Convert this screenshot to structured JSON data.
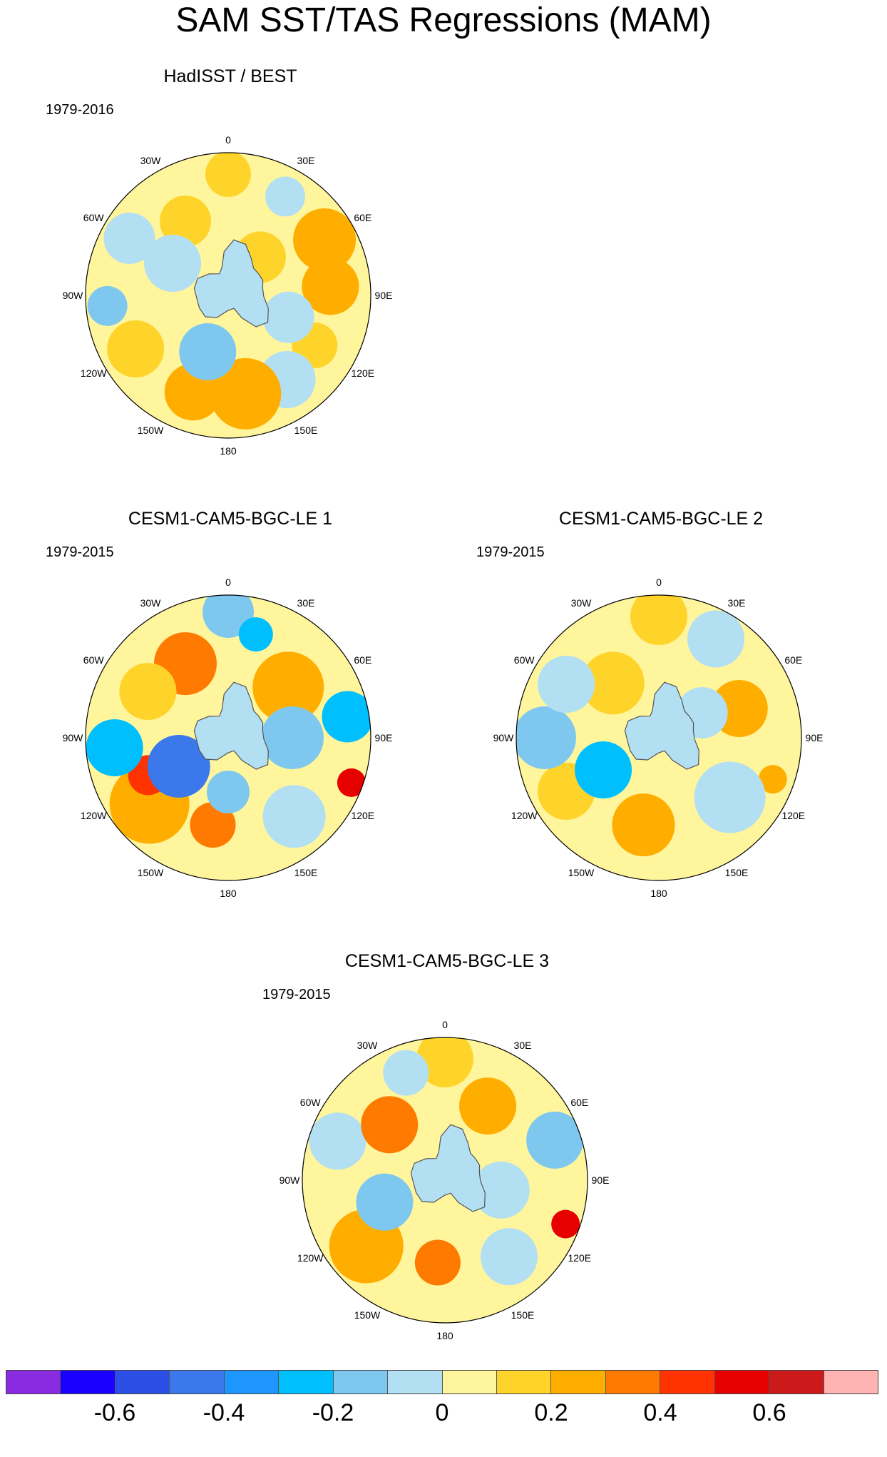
{
  "title": "SAM SST/TAS Regressions (MAM)",
  "longitude_labels": [
    "0",
    "30E",
    "60E",
    "90E",
    "120E",
    "150E",
    "180",
    "150W",
    "120W",
    "90W",
    "60W",
    "30W"
  ],
  "panels": [
    {
      "title": "HadISST / BEST",
      "period": "1979-2016",
      "blobs": [
        {
          "lon": 0,
          "r": 0.85,
          "rad": 0.16,
          "v": 0.1
        },
        {
          "lon": 30,
          "r": 0.8,
          "rad": 0.14,
          "v": -0.1
        },
        {
          "lon": 60,
          "r": 0.78,
          "rad": 0.22,
          "v": 0.2
        },
        {
          "lon": 85,
          "r": 0.72,
          "rad": 0.2,
          "v": 0.25
        },
        {
          "lon": 120,
          "r": 0.7,
          "rad": 0.16,
          "v": 0.1
        },
        {
          "lon": 145,
          "r": 0.72,
          "rad": 0.2,
          "v": -0.1
        },
        {
          "lon": 170,
          "r": 0.7,
          "rad": 0.25,
          "v": 0.2
        },
        {
          "lon": 200,
          "r": 0.72,
          "rad": 0.2,
          "v": 0.25
        },
        {
          "lon": 240,
          "r": 0.75,
          "rad": 0.2,
          "v": 0.1
        },
        {
          "lon": 265,
          "r": 0.85,
          "rad": 0.14,
          "v": -0.15
        },
        {
          "lon": 300,
          "r": 0.8,
          "rad": 0.18,
          "v": -0.1
        },
        {
          "lon": 330,
          "r": 0.6,
          "rad": 0.18,
          "v": 0.1
        },
        {
          "lon": 200,
          "r": 0.42,
          "rad": 0.2,
          "v": -0.2
        },
        {
          "lon": 40,
          "r": 0.35,
          "rad": 0.18,
          "v": 0.1
        },
        {
          "lon": 110,
          "r": 0.45,
          "rad": 0.18,
          "v": -0.1
        },
        {
          "lon": 300,
          "r": 0.45,
          "rad": 0.2,
          "v": -0.1
        }
      ]
    },
    {
      "title": "CESM1-CAM5-BGC-LE 1",
      "period": "1979-2015",
      "blobs": [
        {
          "lon": 0,
          "r": 0.88,
          "rad": 0.18,
          "v": -0.15
        },
        {
          "lon": 15,
          "r": 0.75,
          "rad": 0.12,
          "v": -0.25
        },
        {
          "lon": 330,
          "r": 0.6,
          "rad": 0.22,
          "v": 0.35
        },
        {
          "lon": 50,
          "r": 0.55,
          "rad": 0.25,
          "v": 0.25
        },
        {
          "lon": 80,
          "r": 0.85,
          "rad": 0.18,
          "v": -0.3
        },
        {
          "lon": 110,
          "r": 0.92,
          "rad": 0.1,
          "v": 0.55
        },
        {
          "lon": 140,
          "r": 0.72,
          "rad": 0.22,
          "v": -0.1
        },
        {
          "lon": 190,
          "r": 0.62,
          "rad": 0.16,
          "v": 0.35
        },
        {
          "lon": 230,
          "r": 0.72,
          "rad": 0.28,
          "v": 0.25
        },
        {
          "lon": 245,
          "r": 0.62,
          "rad": 0.14,
          "v": 0.4
        },
        {
          "lon": 240,
          "r": 0.4,
          "rad": 0.22,
          "v": -0.45
        },
        {
          "lon": 265,
          "r": 0.8,
          "rad": 0.2,
          "v": -0.3
        },
        {
          "lon": 300,
          "r": 0.65,
          "rad": 0.2,
          "v": 0.1
        },
        {
          "lon": 90,
          "r": 0.45,
          "rad": 0.22,
          "v": -0.15
        },
        {
          "lon": 180,
          "r": 0.38,
          "rad": 0.15,
          "v": -0.15
        }
      ]
    },
    {
      "title": "CESM1-CAM5-BGC-LE 2",
      "period": "1979-2015",
      "blobs": [
        {
          "lon": 0,
          "r": 0.85,
          "rad": 0.2,
          "v": 0.1
        },
        {
          "lon": 30,
          "r": 0.8,
          "rad": 0.2,
          "v": -0.1
        },
        {
          "lon": 70,
          "r": 0.6,
          "rad": 0.2,
          "v": 0.25
        },
        {
          "lon": 110,
          "r": 0.85,
          "rad": 0.1,
          "v": 0.25
        },
        {
          "lon": 130,
          "r": 0.65,
          "rad": 0.25,
          "v": -0.1
        },
        {
          "lon": 190,
          "r": 0.62,
          "rad": 0.22,
          "v": 0.25
        },
        {
          "lon": 240,
          "r": 0.75,
          "rad": 0.2,
          "v": 0.1
        },
        {
          "lon": 240,
          "r": 0.45,
          "rad": 0.2,
          "v": -0.25
        },
        {
          "lon": 270,
          "r": 0.8,
          "rad": 0.22,
          "v": -0.15
        },
        {
          "lon": 320,
          "r": 0.5,
          "rad": 0.22,
          "v": 0.15
        },
        {
          "lon": 300,
          "r": 0.75,
          "rad": 0.2,
          "v": -0.1
        },
        {
          "lon": 60,
          "r": 0.35,
          "rad": 0.18,
          "v": -0.1
        }
      ]
    },
    {
      "title": "CESM1-CAM5-BGC-LE 3",
      "period": "1979-2015",
      "blobs": [
        {
          "lon": 0,
          "r": 0.85,
          "rad": 0.2,
          "v": 0.1
        },
        {
          "lon": 340,
          "r": 0.8,
          "rad": 0.16,
          "v": -0.1
        },
        {
          "lon": 30,
          "r": 0.6,
          "rad": 0.2,
          "v": 0.2
        },
        {
          "lon": 70,
          "r": 0.82,
          "rad": 0.2,
          "v": -0.15
        },
        {
          "lon": 110,
          "r": 0.9,
          "rad": 0.1,
          "v": 0.5
        },
        {
          "lon": 140,
          "r": 0.7,
          "rad": 0.2,
          "v": -0.1
        },
        {
          "lon": 185,
          "r": 0.58,
          "rad": 0.16,
          "v": 0.35
        },
        {
          "lon": 230,
          "r": 0.72,
          "rad": 0.26,
          "v": 0.25
        },
        {
          "lon": 250,
          "r": 0.45,
          "rad": 0.2,
          "v": -0.2
        },
        {
          "lon": 290,
          "r": 0.8,
          "rad": 0.2,
          "v": -0.1
        },
        {
          "lon": 315,
          "r": 0.55,
          "rad": 0.2,
          "v": 0.3
        },
        {
          "lon": 100,
          "r": 0.4,
          "rad": 0.2,
          "v": -0.1
        }
      ]
    }
  ],
  "colorbar": {
    "colors": [
      "#8a2be2",
      "#1a00ff",
      "#2b4fe6",
      "#3a78eb",
      "#1e96ff",
      "#00bfff",
      "#7ec8f0",
      "#b3dff2",
      "#fff59d",
      "#ffd42a",
      "#ffae00",
      "#ff7a00",
      "#ff3300",
      "#e60000",
      "#cc1a1a",
      "#ffb3b3"
    ],
    "labels": [
      "-0.6",
      "-0.4",
      "-0.2",
      "0",
      "0.2",
      "0.4",
      "0.6"
    ],
    "label_values": [
      -0.6,
      -0.4,
      -0.2,
      0,
      0.2,
      0.4,
      0.6
    ],
    "range": [
      -0.8,
      0.8
    ]
  }
}
